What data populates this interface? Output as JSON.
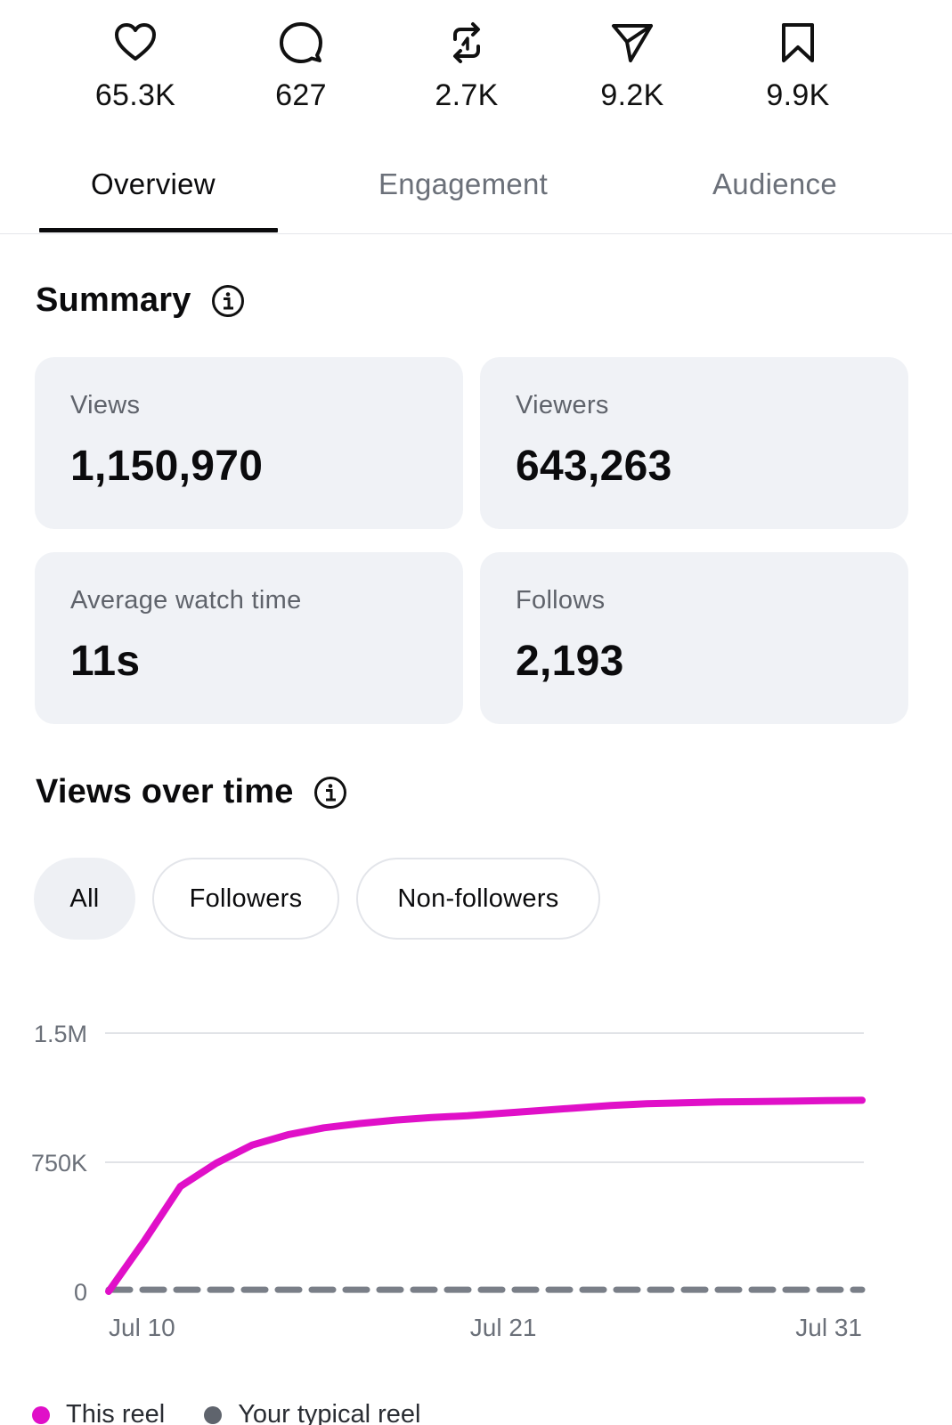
{
  "stats": [
    {
      "icon": "heart-icon",
      "value": "65.3K"
    },
    {
      "icon": "comment-icon",
      "value": "627"
    },
    {
      "icon": "repost-icon",
      "value": "2.7K"
    },
    {
      "icon": "share-icon",
      "value": "9.2K"
    },
    {
      "icon": "bookmark-icon",
      "value": "9.9K"
    }
  ],
  "tabs": [
    {
      "label": "Overview",
      "active": true
    },
    {
      "label": "Engagement",
      "active": false
    },
    {
      "label": "Audience",
      "active": false
    }
  ],
  "summary": {
    "title": "Summary",
    "cards": [
      {
        "label": "Views",
        "value": "1,150,970"
      },
      {
        "label": "Viewers",
        "value": "643,263"
      },
      {
        "label": "Average watch time",
        "value": "11s"
      },
      {
        "label": "Follows",
        "value": "2,193"
      }
    ]
  },
  "views_over_time": {
    "title": "Views over time",
    "filters": [
      {
        "label": "All",
        "selected": true
      },
      {
        "label": "Followers",
        "selected": false
      },
      {
        "label": "Non-followers",
        "selected": false
      }
    ]
  },
  "colors": {
    "accent": "#e010c8",
    "typical": "#7a7f88",
    "card_bg": "#f0f2f6"
  },
  "chart_data": {
    "type": "line",
    "x": [
      "Jul 10",
      "Jul 11",
      "Jul 12",
      "Jul 13",
      "Jul 14",
      "Jul 15",
      "Jul 16",
      "Jul 17",
      "Jul 18",
      "Jul 19",
      "Jul 20",
      "Jul 21",
      "Jul 22",
      "Jul 23",
      "Jul 24",
      "Jul 25",
      "Jul 26",
      "Jul 27",
      "Jul 28",
      "Jul 29",
      "Jul 30",
      "Jul 31"
    ],
    "x_tick_labels": [
      "Jul 10",
      "Jul 21",
      "Jul 31"
    ],
    "y_tick_labels": [
      "1.5M",
      "750K",
      "0"
    ],
    "ylim": [
      0,
      1500000
    ],
    "grid": true,
    "legend_position": "bottom-left",
    "series": [
      {
        "name": "This reel",
        "style": "solid",
        "values": [
          0,
          295000,
          610000,
          745000,
          850000,
          910000,
          950000,
          975000,
          995000,
          1010000,
          1020000,
          1035000,
          1050000,
          1065000,
          1080000,
          1090000,
          1095000,
          1100000,
          1102000,
          1105000,
          1108000,
          1110000
        ]
      },
      {
        "name": "Your typical reel",
        "style": "dashed",
        "values": [
          10000,
          10000,
          10000,
          10000,
          10000,
          10000,
          10000,
          10000,
          10000,
          10000,
          10000,
          10000,
          10000,
          10000,
          10000,
          10000,
          10000,
          10000,
          10000,
          10000,
          10000,
          10000
        ]
      }
    ]
  }
}
